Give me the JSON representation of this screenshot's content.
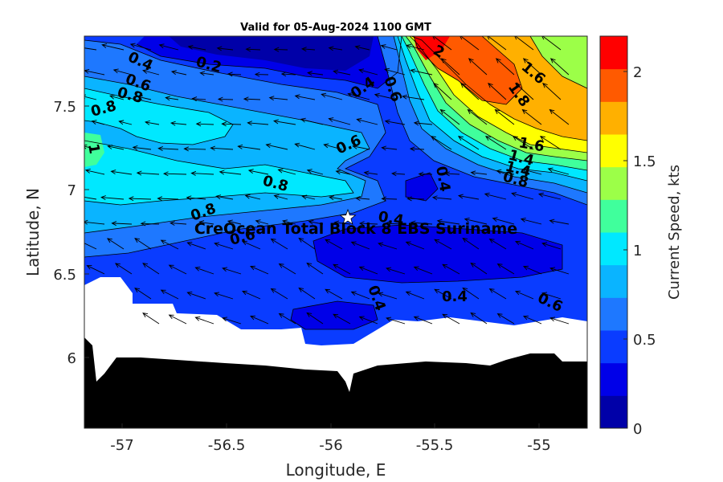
{
  "title": "Valid for 05-Aug-2024 1100 GMT",
  "site_label": "CreOcean Total Block 8 EBS Suriname",
  "map": {
    "xlabel": "Longitude, E",
    "ylabel": "Latitude, N",
    "xlim": [
      -57.18,
      -54.78
    ],
    "ylim": [
      5.53,
      7.92
    ],
    "xticks": [
      "-57",
      "-56.5",
      "-56",
      "-55.5",
      "-55"
    ],
    "yticks": [
      "6",
      "6.5",
      "7",
      "7.5"
    ],
    "site_lon": -55.9,
    "site_lat": 6.83
  },
  "colorbar": {
    "label": "Current Speed, kts",
    "range": [
      0,
      2.2
    ],
    "ticks": [
      "0",
      "0.5",
      "1",
      "1.5",
      "2"
    ],
    "levels": [
      "#0000a8",
      "#0000e8",
      "#0a3cff",
      "#1e78ff",
      "#0ab4ff",
      "#00e8ff",
      "#40ff9c",
      "#9cff48",
      "#ffff00",
      "#ffb000",
      "#ff5a00",
      "#ff0000"
    ]
  },
  "contour_labels": [
    "0.4",
    "0.2",
    "0.6",
    "0.8",
    "0.8",
    "1",
    "0.4",
    "0.6",
    "2",
    "1.6",
    "1.8",
    "0.6",
    "1.6",
    "1.4",
    "1.4",
    "0.8",
    "0.4",
    "0.8",
    "0.8",
    "0.6",
    "0.4",
    "0.4",
    "0.4",
    "0.6"
  ],
  "colors": {
    "land": "#000000",
    "nodata": "#ffffff",
    "arrow": "#000000"
  }
}
